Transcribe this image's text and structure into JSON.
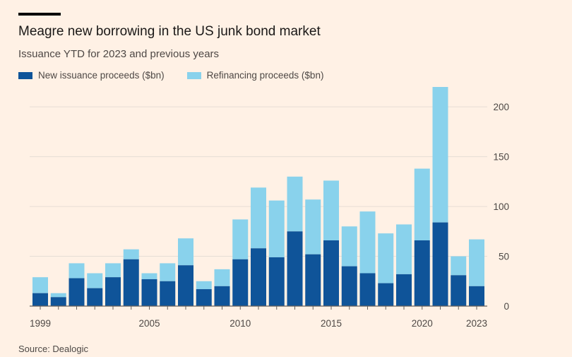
{
  "header": {
    "title": "Meagre new borrowing in the US junk bond market",
    "subtitle": "Issuance YTD for 2023 and previous years"
  },
  "source": "Source: Dealogic",
  "colors": {
    "new_issuance": "#0f5499",
    "refinancing": "#89d2ec",
    "grid": "#e6ddd5",
    "background": "#fff1e5"
  },
  "legend": [
    {
      "label": "New issuance proceeds ($bn)",
      "color": "#0f5499"
    },
    {
      "label": "Refinancing proceeds ($bn)",
      "color": "#89d2ec"
    }
  ],
  "chart_data": {
    "type": "bar",
    "stacked": true,
    "title": "Meagre new borrowing in the US junk bond market",
    "subtitle": "Issuance YTD for 2023 and previous years",
    "xlabel": "",
    "ylabel": "",
    "ylim": [
      0,
      220
    ],
    "y_ticks": [
      0,
      50,
      100,
      150,
      200
    ],
    "x_tick_labels": [
      "1999",
      "2005",
      "2010",
      "2015",
      "2020",
      "2023"
    ],
    "grid": true,
    "legend_position": "top-left",
    "categories": [
      "1999",
      "2000",
      "2001",
      "2002",
      "2003",
      "2004",
      "2005",
      "2006",
      "2007",
      "2008",
      "2009",
      "2010",
      "2011",
      "2012",
      "2013",
      "2014",
      "2015",
      "2016",
      "2017",
      "2018",
      "2019",
      "2020",
      "2021",
      "2022",
      "2023"
    ],
    "series": [
      {
        "name": "New issuance proceeds ($bn)",
        "values": [
          13,
          9,
          28,
          18,
          29,
          47,
          27,
          25,
          41,
          17,
          20,
          47,
          58,
          49,
          75,
          52,
          66,
          40,
          33,
          23,
          32,
          66,
          84,
          31,
          20
        ]
      },
      {
        "name": "Refinancing proceeds ($bn)",
        "values": [
          16,
          4,
          15,
          15,
          14,
          10,
          6,
          18,
          27,
          8,
          17,
          40,
          61,
          57,
          55,
          55,
          60,
          40,
          62,
          50,
          50,
          72,
          136,
          19,
          47
        ]
      }
    ]
  }
}
